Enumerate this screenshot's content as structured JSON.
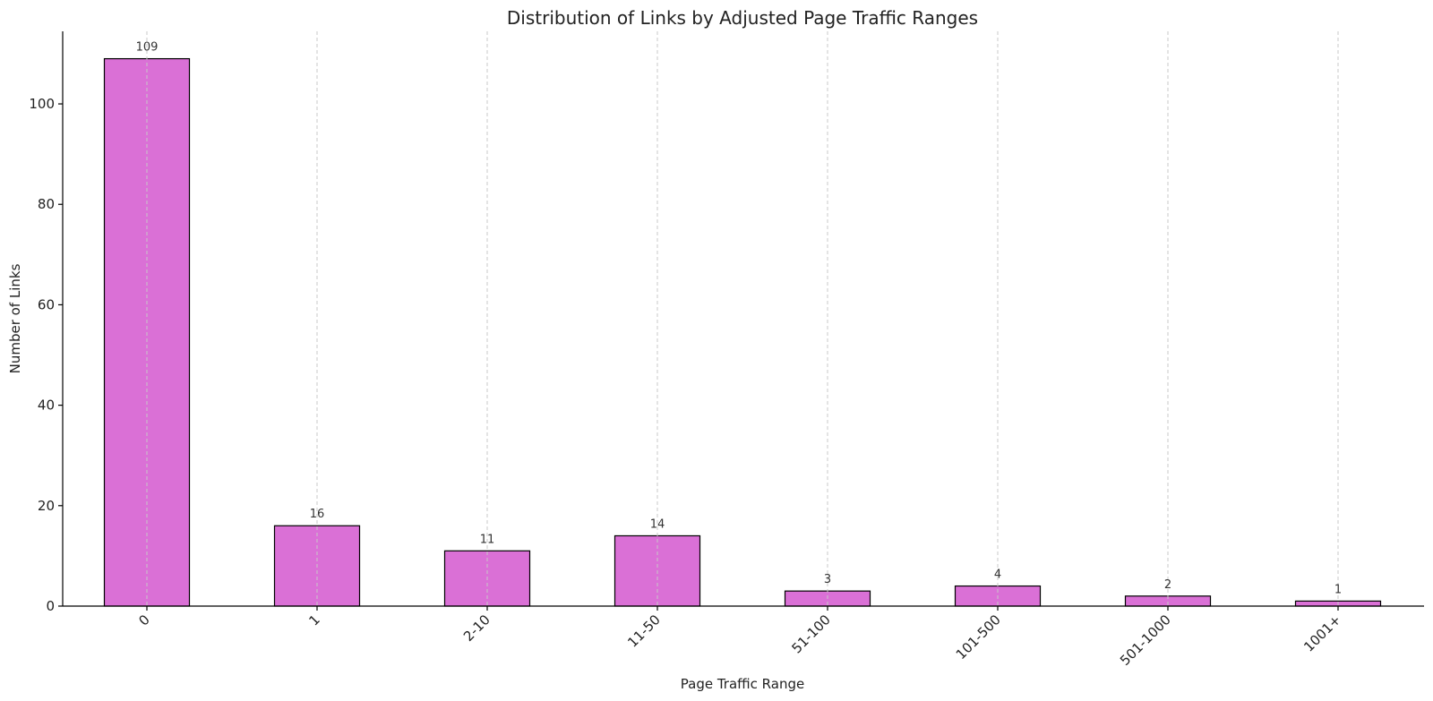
{
  "chart_data": {
    "type": "bar",
    "title": "Distribution of Links by Adjusted Page Traffic Ranges",
    "xlabel": "Page Traffic Range",
    "ylabel": "Number of Links",
    "categories": [
      "0",
      "1",
      "2-10",
      "11-50",
      "51-100",
      "101-500",
      "501-1000",
      "1001+"
    ],
    "values": [
      109,
      16,
      11,
      14,
      3,
      4,
      2,
      1
    ],
    "ylim": [
      0,
      114.45
    ],
    "yticks": [
      0,
      20,
      40,
      60,
      80,
      100
    ],
    "grid": "x-dashed",
    "legend": "none",
    "bar_color": "#da70d6",
    "bar_edge_color": "#000000"
  }
}
